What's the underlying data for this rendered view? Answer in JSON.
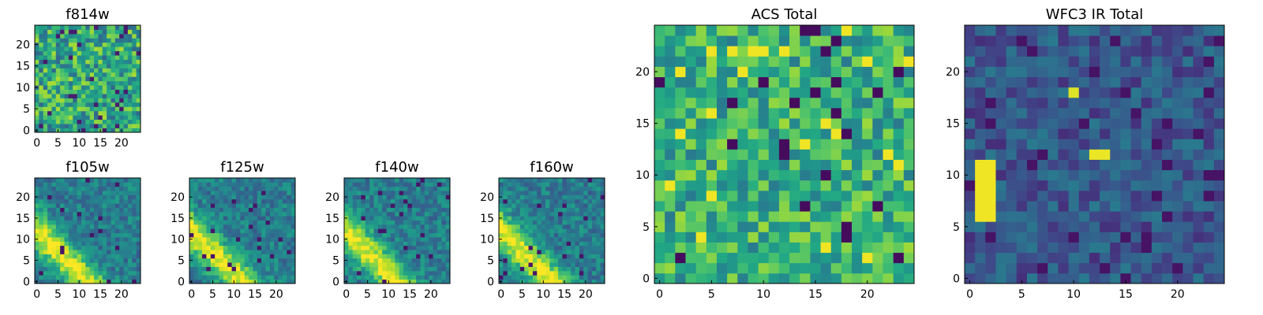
{
  "colormap": "viridis",
  "colors": {
    "frame": "#000000",
    "background": "#ffffff"
  },
  "chart_data": [
    {
      "type": "heatmap",
      "title": "f814w",
      "size": 25,
      "xticks": [
        0,
        5,
        10,
        15,
        20
      ],
      "yticks": [
        0,
        5,
        10,
        15,
        20
      ],
      "pattern": "noise",
      "seed": 11
    },
    {
      "type": "heatmap",
      "title": "f105w",
      "size": 25,
      "xticks": [
        0,
        5,
        10,
        15,
        20
      ],
      "yticks": [
        0,
        5,
        10,
        15,
        20
      ],
      "pattern": "band",
      "seed": 21
    },
    {
      "type": "heatmap",
      "title": "f125w",
      "size": 25,
      "xticks": [
        0,
        5,
        10,
        15,
        20
      ],
      "yticks": [
        0,
        5,
        10,
        15,
        20
      ],
      "pattern": "band",
      "seed": 31
    },
    {
      "type": "heatmap",
      "title": "f140w",
      "size": 25,
      "xticks": [
        0,
        5,
        10,
        15,
        20
      ],
      "yticks": [
        0,
        5,
        10,
        15,
        20
      ],
      "pattern": "band",
      "seed": 41
    },
    {
      "type": "heatmap",
      "title": "f160w",
      "size": 25,
      "xticks": [
        0,
        5,
        10,
        15,
        20
      ],
      "yticks": [
        0,
        5,
        10,
        15,
        20
      ],
      "pattern": "band",
      "seed": 51
    },
    {
      "type": "heatmap",
      "title": "ACS Total",
      "size": 25,
      "xticks": [
        0,
        5,
        10,
        15,
        20
      ],
      "yticks": [
        0,
        5,
        10,
        15,
        20
      ],
      "pattern": "acs",
      "seed": 61
    },
    {
      "type": "heatmap",
      "title": "WFC3 IR Total",
      "size": 25,
      "xticks": [
        0,
        5,
        10,
        15,
        20
      ],
      "yticks": [
        0,
        5,
        10,
        15,
        20
      ],
      "pattern": "wfc3",
      "seed": 71
    }
  ]
}
